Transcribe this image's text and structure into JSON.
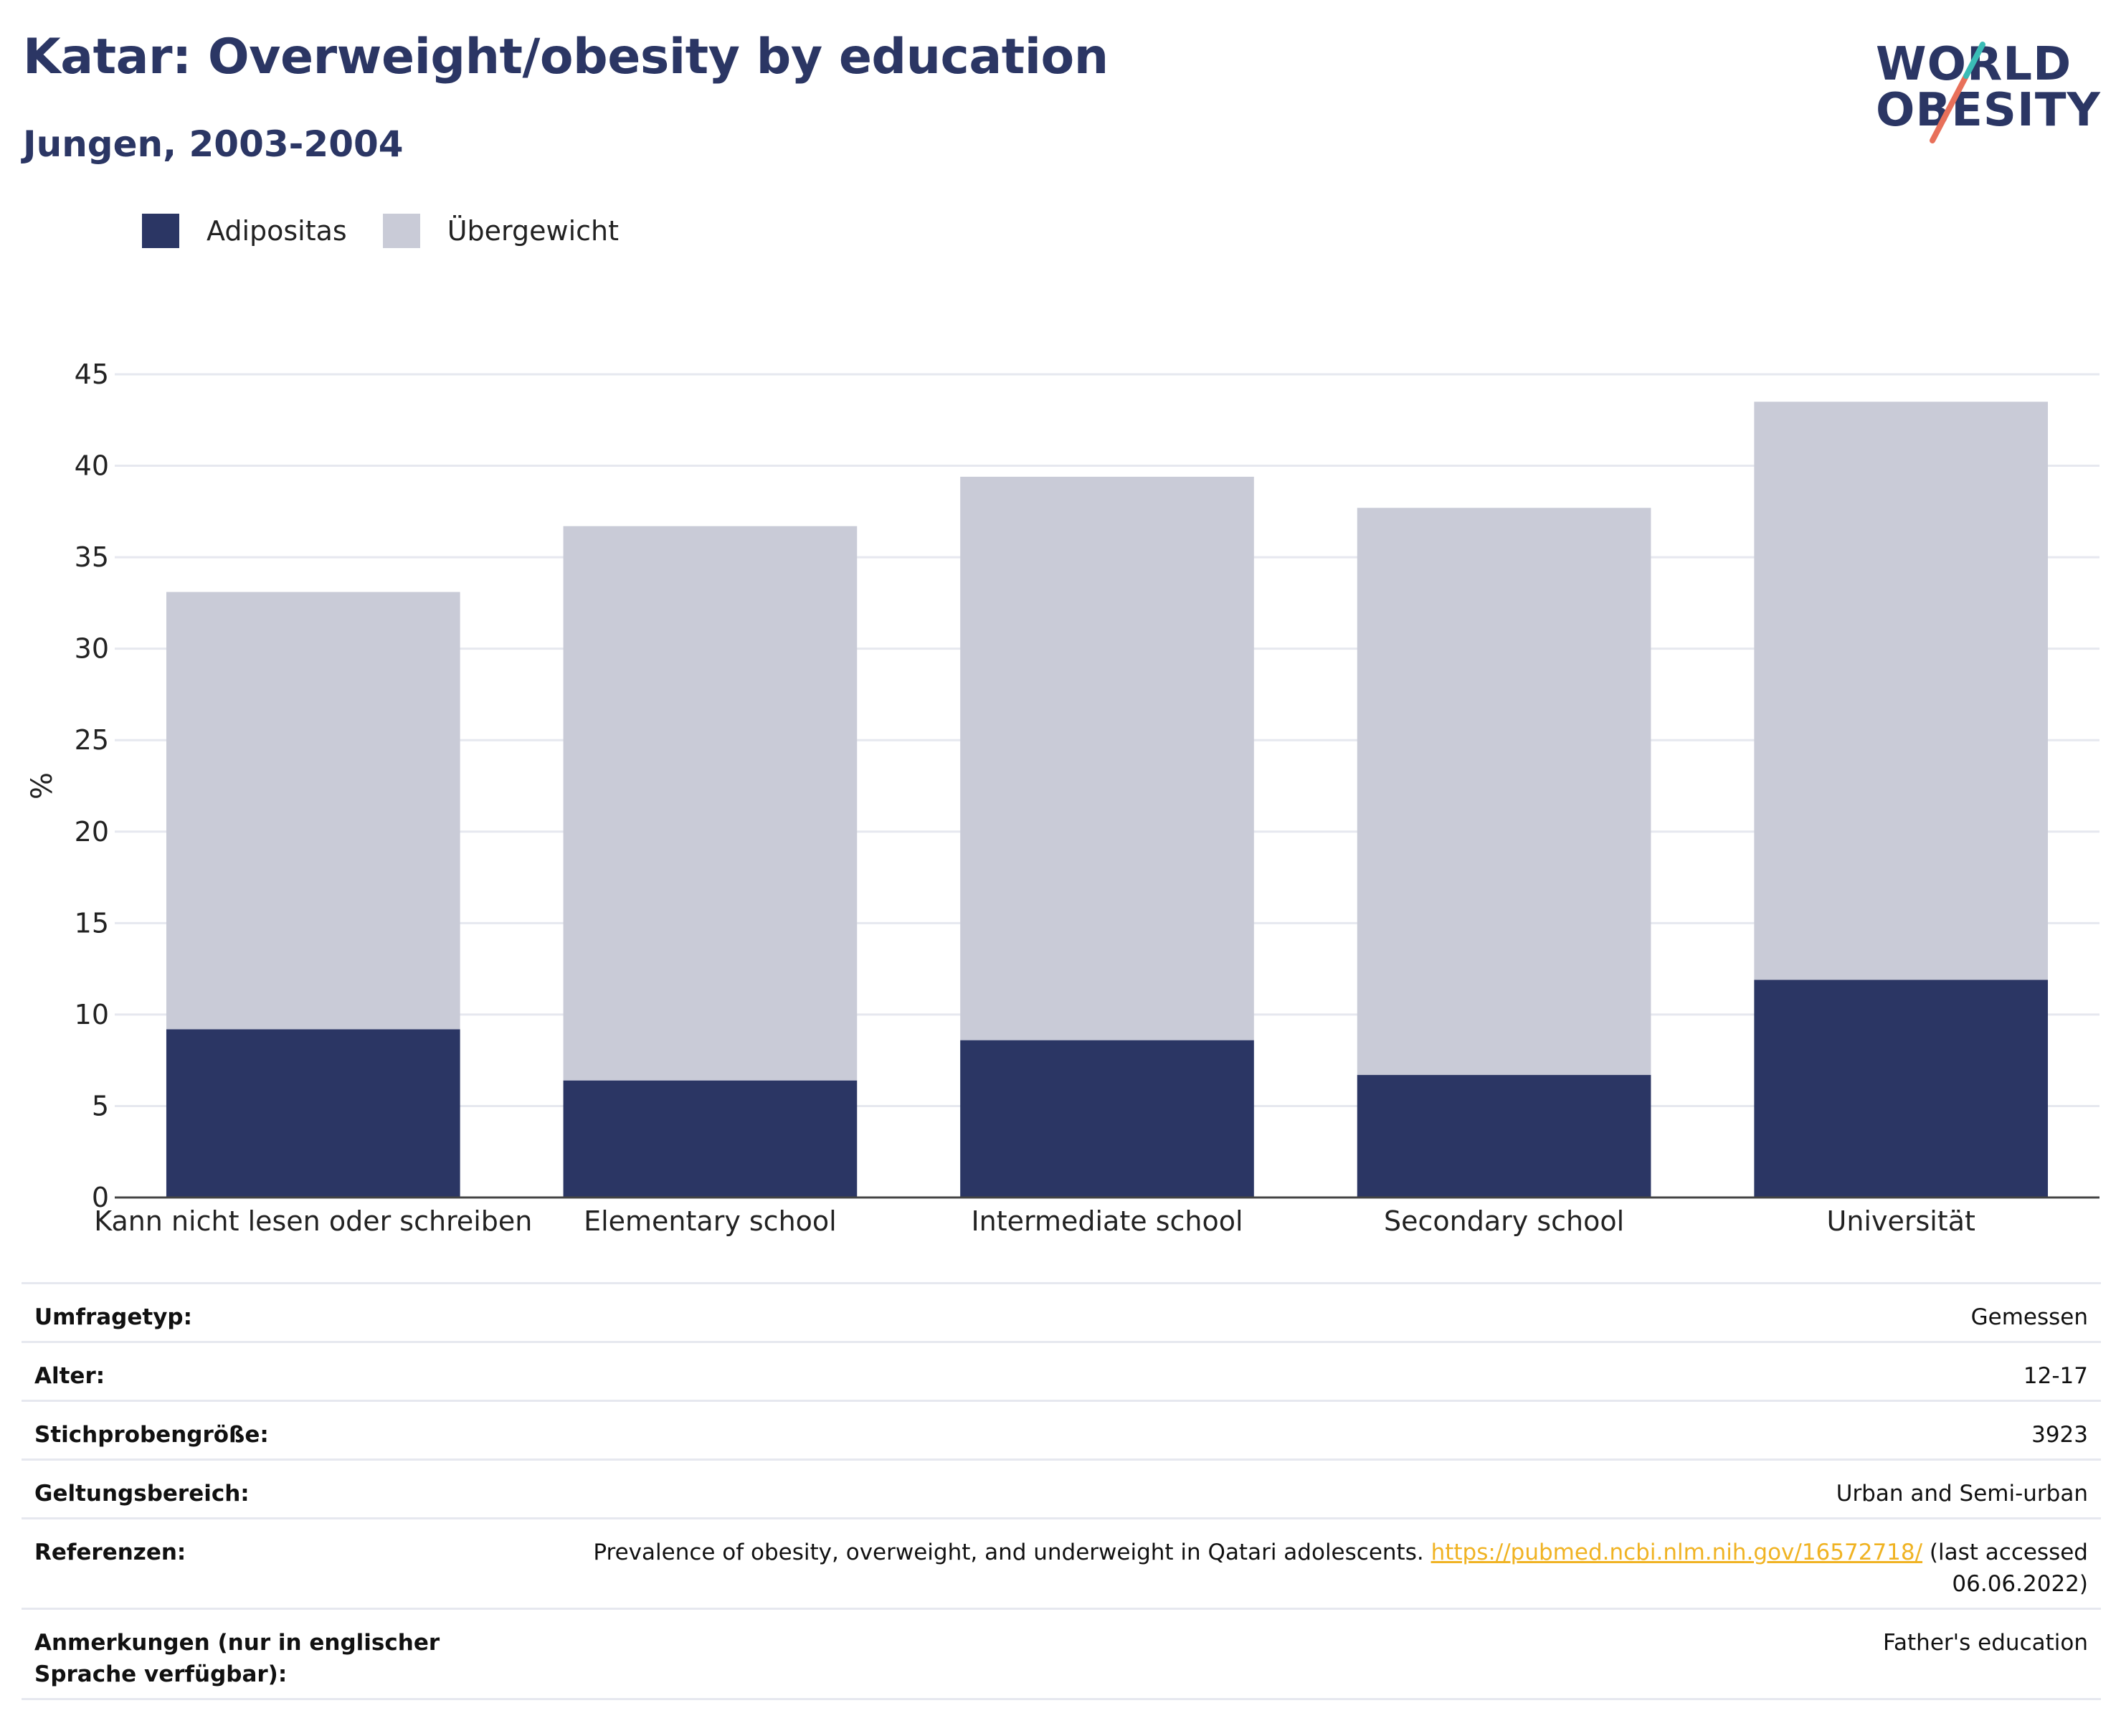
{
  "header": {
    "title": "Katar: Overweight/obesity by education",
    "subtitle": "Jungen, 2003-2004"
  },
  "logo": {
    "line1": "WORLD",
    "line2": "OBESITY"
  },
  "colors": {
    "brand_navy": "#2b3664",
    "obesity": "#2b3664",
    "overweight": "#c9cbd7",
    "logo_teal": "#3bbcb6",
    "logo_coral": "#e8705a",
    "link": "#f0b323"
  },
  "chart_data": {
    "type": "bar",
    "stacked": true,
    "categories": [
      "Kann nicht lesen oder schreiben",
      "Elementary school",
      "Intermediate school",
      "Secondary school",
      "Universität"
    ],
    "series": [
      {
        "name": "Adipositas",
        "values": [
          9.2,
          6.4,
          8.6,
          6.7,
          11.9
        ]
      },
      {
        "name": "Übergewicht",
        "values": [
          23.9,
          30.3,
          30.8,
          31.0,
          31.6
        ]
      }
    ],
    "ylabel": "%",
    "ylim": [
      0,
      45
    ],
    "yticks": [
      0,
      5,
      10,
      15,
      20,
      25,
      30,
      35,
      40,
      45
    ],
    "grid": true,
    "legend_position": "top-left"
  },
  "info": {
    "rows": [
      {
        "key": "Umfragetyp:",
        "value": "Gemessen"
      },
      {
        "key": "Alter:",
        "value": "12-17"
      },
      {
        "key": "Stichprobengröße:",
        "value": "3923"
      },
      {
        "key": "Geltungsbereich:",
        "value": "Urban and Semi-urban"
      }
    ],
    "references": {
      "key": "Referenzen:",
      "text_before": "Prevalence of obesity, overweight, and underweight in Qatari adolescents. ",
      "link": "https://pubmed.ncbi.nlm.nih.gov/16572718/",
      "text_after": " (last accessed 06.06.2022)"
    },
    "notes": {
      "key": "Anmerkungen (nur in englischer Sprache verfügbar):",
      "value": "Father's education"
    }
  }
}
